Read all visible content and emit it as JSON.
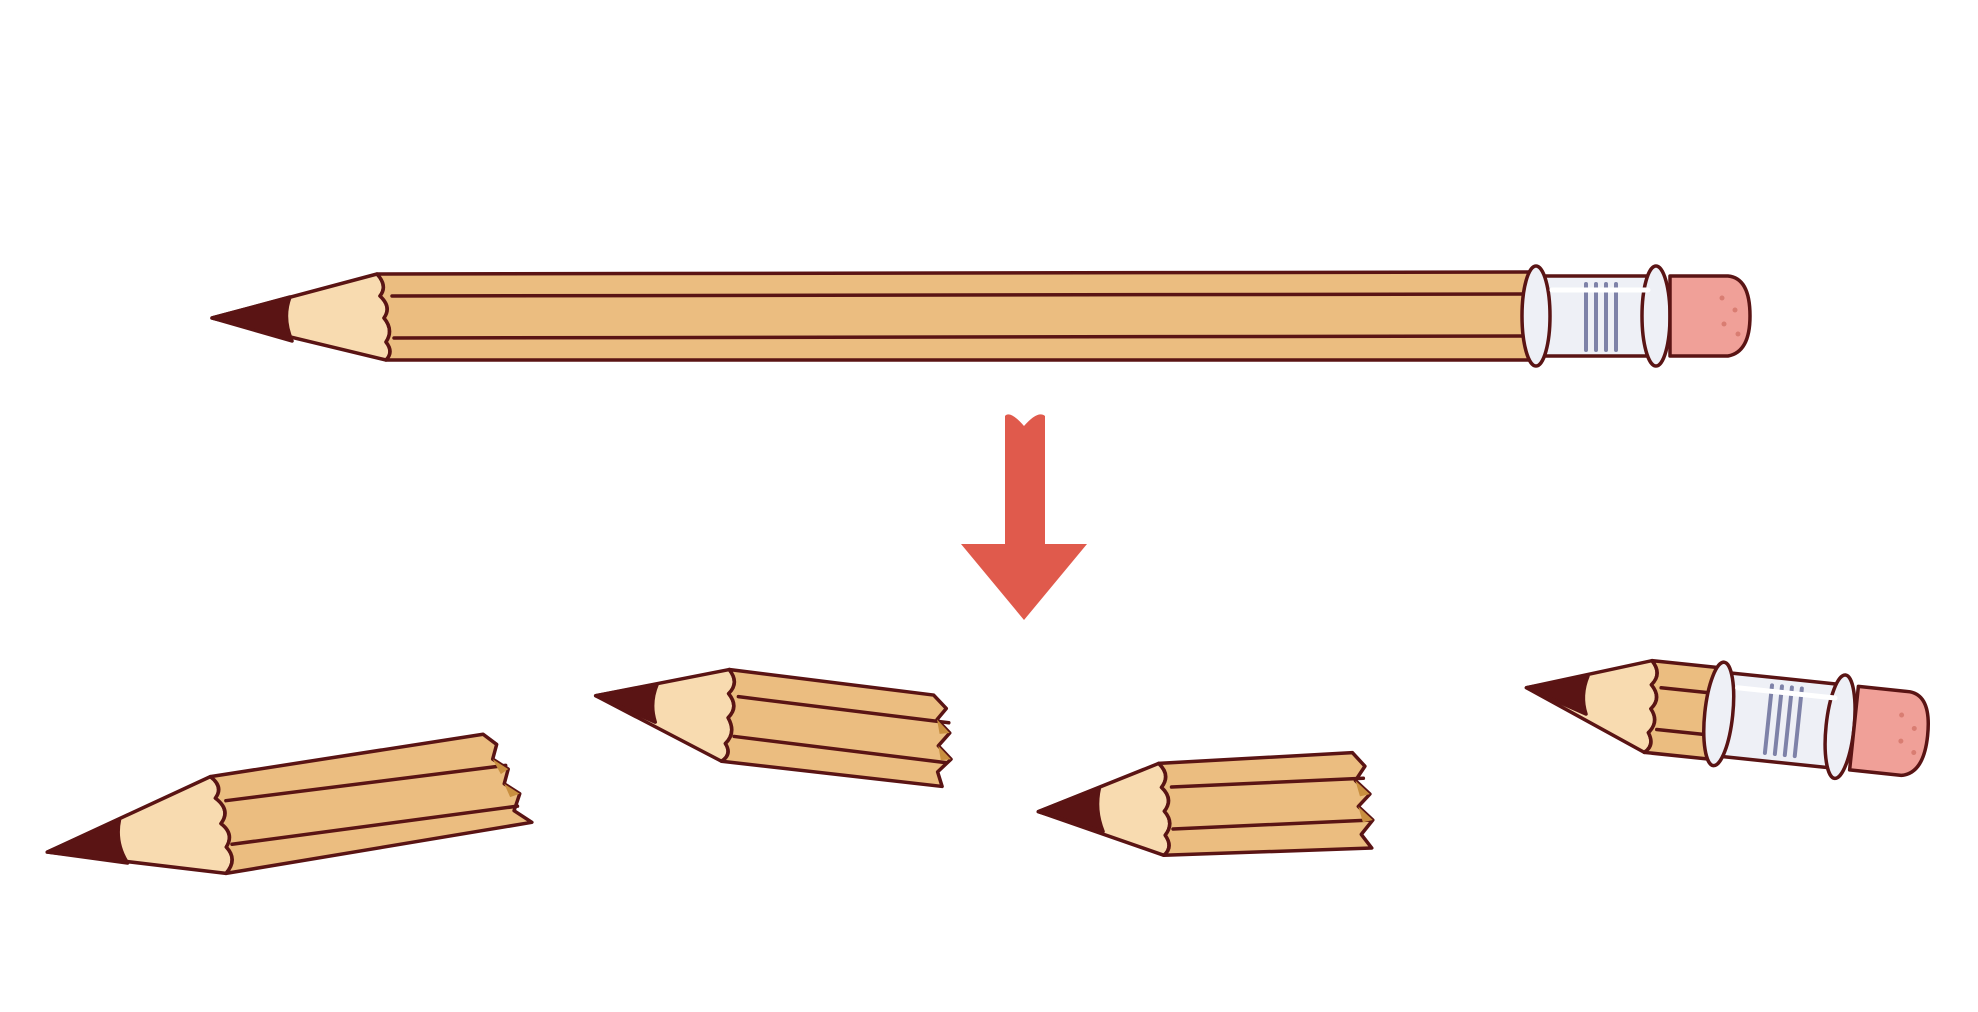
{
  "illustration": {
    "subject": "pencil",
    "colors": {
      "background": "#ffffff",
      "outline": "#5a1414",
      "wood_body": "#ebbd80",
      "wood_cone": "#f8dbb0",
      "lead": "#5a1414",
      "ferrule": "#eef0f6",
      "ferrule_lines": "#7e82a8",
      "eraser": "#f0a098",
      "eraser_dots": "#d97d72",
      "splinter": "#c98f3f",
      "arrow": "#e05a4c"
    },
    "icons": {
      "whole_pencil": "pencil-icon",
      "arrow": "arrow-down-icon",
      "pieces": [
        "broken-pencil-piece-icon",
        "broken-pencil-piece-icon",
        "broken-pencil-piece-icon",
        "short-pencil-icon"
      ]
    },
    "piece_count": 4
  }
}
